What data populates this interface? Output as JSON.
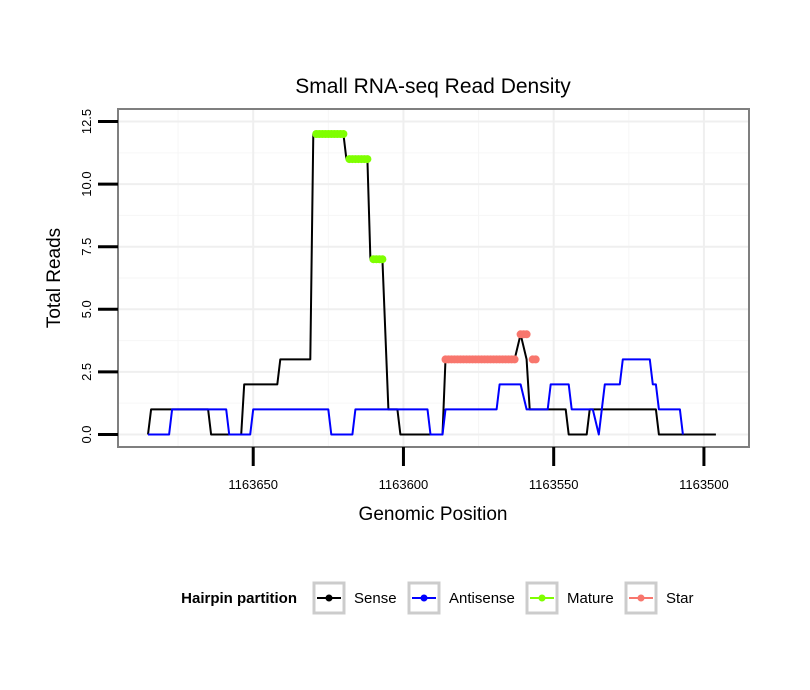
{
  "chart_data": {
    "type": "line",
    "title": "Small RNA-seq Read Density",
    "xlabel": "Genomic Position",
    "ylabel": "Total Reads",
    "xlim": [
      1163695,
      1163485
    ],
    "x_reversed": true,
    "ylim": [
      -0.5,
      13
    ],
    "x_ticks": [
      1163650,
      1163600,
      1163550,
      1163500
    ],
    "x_tick_labels": [
      "1163650",
      "1163600",
      "1163550",
      "1163500"
    ],
    "y_ticks": [
      0,
      2.5,
      5,
      7.5,
      10,
      12.5
    ],
    "y_tick_labels": [
      "0.0",
      "2.5",
      "5.0",
      "7.5",
      "10.0",
      "12.5"
    ],
    "grid": true,
    "legend_title": "Hairpin partition",
    "legend_position": "bottom",
    "series": [
      {
        "name": "Sense",
        "color": "#000000",
        "style": "line",
        "points": [
          [
            1163685,
            0
          ],
          [
            1163684,
            1
          ],
          [
            1163665,
            1
          ],
          [
            1163664,
            0
          ],
          [
            1163654,
            0
          ],
          [
            1163653,
            2
          ],
          [
            1163642,
            2
          ],
          [
            1163641,
            3
          ],
          [
            1163631,
            3
          ],
          [
            1163630,
            12
          ],
          [
            1163620,
            12
          ],
          [
            1163619,
            11
          ],
          [
            1163612,
            11
          ],
          [
            1163611,
            7
          ],
          [
            1163607,
            7
          ],
          [
            1163605,
            1
          ],
          [
            1163602,
            1
          ],
          [
            1163601,
            0
          ],
          [
            1163587,
            0
          ],
          [
            1163586,
            3
          ],
          [
            1163563,
            3
          ],
          [
            1163561,
            4
          ],
          [
            1163559,
            3
          ],
          [
            1163558,
            1
          ],
          [
            1163546,
            1
          ],
          [
            1163545,
            0
          ],
          [
            1163539,
            0
          ],
          [
            1163538,
            1
          ],
          [
            1163516,
            1
          ],
          [
            1163515,
            0
          ],
          [
            1163496,
            0
          ]
        ]
      },
      {
        "name": "Antisense",
        "color": "#0000ff",
        "style": "line",
        "points": [
          [
            1163685,
            0
          ],
          [
            1163678,
            0
          ],
          [
            1163677,
            1
          ],
          [
            1163659,
            1
          ],
          [
            1163658,
            0
          ],
          [
            1163651,
            0
          ],
          [
            1163650,
            1
          ],
          [
            1163625,
            1
          ],
          [
            1163624,
            0
          ],
          [
            1163617,
            0
          ],
          [
            1163616,
            1
          ],
          [
            1163592,
            1
          ],
          [
            1163591,
            0
          ],
          [
            1163587,
            0
          ],
          [
            1163586,
            1
          ],
          [
            1163569,
            1
          ],
          [
            1163568,
            2
          ],
          [
            1163561,
            2
          ],
          [
            1163559,
            1
          ],
          [
            1163552,
            1
          ],
          [
            1163551,
            2
          ],
          [
            1163545,
            2
          ],
          [
            1163544,
            1
          ],
          [
            1163537,
            1
          ],
          [
            1163535,
            0
          ],
          [
            1163533,
            2
          ],
          [
            1163528,
            2
          ],
          [
            1163527,
            3
          ],
          [
            1163518,
            3
          ],
          [
            1163517,
            2
          ],
          [
            1163516,
            2
          ],
          [
            1163515,
            1
          ],
          [
            1163508,
            1
          ],
          [
            1163507,
            0
          ]
        ]
      },
      {
        "name": "Mature",
        "color": "#7fff00",
        "style": "points",
        "points": [
          [
            1163629,
            12
          ],
          [
            1163628,
            12
          ],
          [
            1163627,
            12
          ],
          [
            1163626,
            12
          ],
          [
            1163625,
            12
          ],
          [
            1163624,
            12
          ],
          [
            1163623,
            12
          ],
          [
            1163622,
            12
          ],
          [
            1163621,
            12
          ],
          [
            1163620,
            12
          ],
          [
            1163618,
            11
          ],
          [
            1163617,
            11
          ],
          [
            1163616,
            11
          ],
          [
            1163615,
            11
          ],
          [
            1163614,
            11
          ],
          [
            1163613,
            11
          ],
          [
            1163612,
            11
          ],
          [
            1163610,
            7
          ],
          [
            1163609,
            7
          ],
          [
            1163608,
            7
          ],
          [
            1163607,
            7
          ]
        ]
      },
      {
        "name": "Star",
        "color": "#f8766d",
        "style": "points",
        "points": [
          [
            1163586,
            3
          ],
          [
            1163585,
            3
          ],
          [
            1163584,
            3
          ],
          [
            1163583,
            3
          ],
          [
            1163582,
            3
          ],
          [
            1163581,
            3
          ],
          [
            1163580,
            3
          ],
          [
            1163579,
            3
          ],
          [
            1163578,
            3
          ],
          [
            1163577,
            3
          ],
          [
            1163576,
            3
          ],
          [
            1163575,
            3
          ],
          [
            1163574,
            3
          ],
          [
            1163573,
            3
          ],
          [
            1163572,
            3
          ],
          [
            1163571,
            3
          ],
          [
            1163570,
            3
          ],
          [
            1163569,
            3
          ],
          [
            1163568,
            3
          ],
          [
            1163567,
            3
          ],
          [
            1163566,
            3
          ],
          [
            1163565,
            3
          ],
          [
            1163564,
            3
          ],
          [
            1163563,
            3
          ],
          [
            1163561,
            4
          ],
          [
            1163560,
            4
          ],
          [
            1163559,
            4
          ],
          [
            1163557,
            3
          ],
          [
            1163556,
            3
          ]
        ]
      }
    ]
  }
}
